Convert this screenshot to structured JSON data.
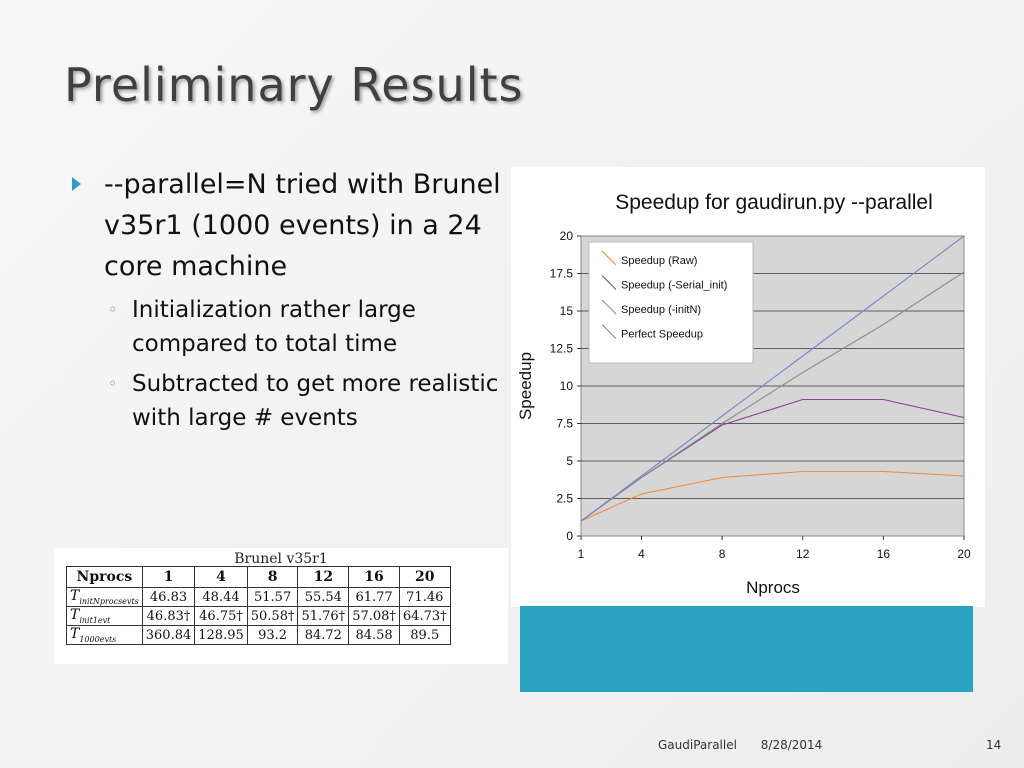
{
  "slide": {
    "title": "Preliminary Results",
    "bullets": [
      {
        "text": "--parallel=N tried with Brunel v35r1 (1000 events) in a 24 core machine",
        "sub": [
          "Initialization rather  large compared to total time",
          "Subtracted to get more realistic with large # events"
        ]
      }
    ],
    "footer": {
      "left": "GaudiParallel",
      "date": "8/28/2014",
      "page": "14"
    }
  },
  "colors": {
    "accent": "#2ba2bf",
    "raw": "#f08a3c",
    "serial_init": "#8a3f9a",
    "initN": "#8c8c8c",
    "perfect": "#7b86c8"
  },
  "table": {
    "caption": "Brunel v35r1",
    "headers": [
      "Nprocs",
      "1",
      "4",
      "8",
      "12",
      "16",
      "20"
    ],
    "rows": [
      {
        "label": "T",
        "sub": "initNprocsevts",
        "values": [
          "46.83",
          "48.44",
          "51.57",
          "55.54",
          "61.77",
          "71.46"
        ]
      },
      {
        "label": "T",
        "sub": "init1evt",
        "values": [
          "46.83†",
          "46.75†",
          "50.58†",
          "51.76†",
          "57.08†",
          "64.73†"
        ]
      },
      {
        "label": "T",
        "sub": "1000evts",
        "values": [
          "360.84",
          "128.95",
          "93.2",
          "84.72",
          "84.58",
          "89.5"
        ]
      }
    ]
  },
  "chart_data": {
    "type": "line",
    "title": "Speedup for gaudirun.py --parallel",
    "xlabel": "Nprocs",
    "ylabel": "Speedup",
    "x": [
      1,
      4,
      8,
      12,
      16,
      20
    ],
    "xticks": [
      "1",
      "4",
      "8",
      "12",
      "16",
      "20"
    ],
    "yticks": [
      "0",
      "2.5",
      "5",
      "7.5",
      "10",
      "12.5",
      "15",
      "17.5",
      "20"
    ],
    "ylim": [
      0,
      20
    ],
    "grid": true,
    "legend_position": "top-left",
    "series": [
      {
        "name": "Speedup (Raw)",
        "values": [
          1.0,
          2.8,
          3.9,
          4.3,
          4.3,
          4.0
        ]
      },
      {
        "name": "Speedup (-Serial_init)",
        "values": [
          1.0,
          3.9,
          7.4,
          9.1,
          9.1,
          7.9
        ]
      },
      {
        "name": "Speedup (-initN)",
        "values": [
          1.0,
          3.9,
          7.5,
          10.9,
          14.1,
          17.6
        ]
      },
      {
        "name": "Perfect Speedup",
        "values": [
          1,
          4,
          8,
          12,
          16,
          20
        ]
      }
    ]
  }
}
